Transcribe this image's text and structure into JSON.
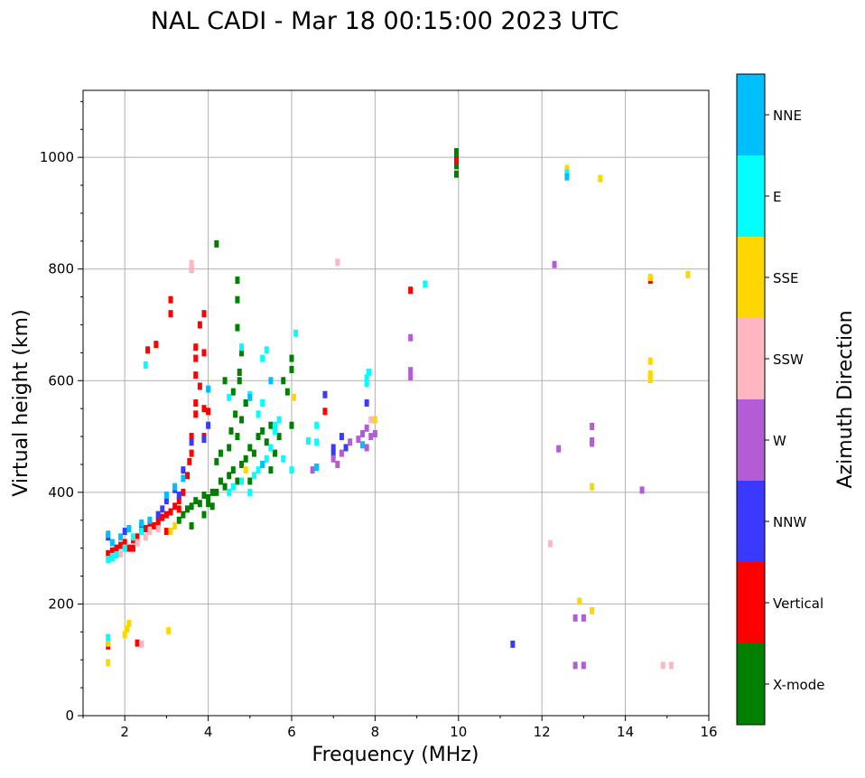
{
  "chart_data": {
    "type": "scatter",
    "title": "NAL CADI - Mar 18 00:15:00 2023 UTC",
    "xlabel": "Frequency (MHz)",
    "ylabel": "Virtual height (km)",
    "xlim": [
      1,
      16
    ],
    "ylim": [
      0,
      1120
    ],
    "xticks": [
      2,
      4,
      6,
      8,
      10,
      12,
      14,
      16
    ],
    "yticks": [
      0,
      200,
      400,
      600,
      800,
      1000
    ],
    "grid": true,
    "colorbar": {
      "label": "Azimuth Direction",
      "categories": [
        {
          "name": "X-mode",
          "color": "#008000"
        },
        {
          "name": "Vertical",
          "color": "#ff0000"
        },
        {
          "name": "NNW",
          "color": "#3a3aff"
        },
        {
          "name": "W",
          "color": "#b35cd6"
        },
        {
          "name": "SSW",
          "color": "#ffb6c1"
        },
        {
          "name": "SSE",
          "color": "#ffd700"
        },
        {
          "name": "E",
          "color": "#00ffff"
        },
        {
          "name": "NNE",
          "color": "#00bfff"
        }
      ]
    },
    "series": [
      {
        "name": "X-mode",
        "points": [
          [
            3.3,
            350
          ],
          [
            3.4,
            360
          ],
          [
            3.5,
            370
          ],
          [
            3.6,
            375
          ],
          [
            3.7,
            385
          ],
          [
            3.8,
            380
          ],
          [
            3.9,
            395
          ],
          [
            4.0,
            390
          ],
          [
            4.1,
            375
          ],
          [
            4.2,
            400
          ],
          [
            4.3,
            420
          ],
          [
            4.4,
            410
          ],
          [
            4.5,
            430
          ],
          [
            4.6,
            440
          ],
          [
            4.7,
            420
          ],
          [
            4.8,
            450
          ],
          [
            4.9,
            460
          ],
          [
            5.0,
            480
          ],
          [
            5.1,
            470
          ],
          [
            5.2,
            500
          ],
          [
            5.3,
            510
          ],
          [
            5.4,
            490
          ],
          [
            5.5,
            520
          ],
          [
            4.7,
            500
          ],
          [
            4.8,
            530
          ],
          [
            4.9,
            560
          ],
          [
            4.75,
            600
          ],
          [
            4.75,
            615
          ],
          [
            4.7,
            780
          ],
          [
            4.7,
            745
          ],
          [
            4.7,
            695
          ],
          [
            4.55,
            510
          ],
          [
            4.65,
            540
          ],
          [
            4.4,
            600
          ],
          [
            4.2,
            845
          ],
          [
            4.1,
            400
          ],
          [
            4.2,
            455
          ],
          [
            4.3,
            470
          ],
          [
            4.0,
            380
          ],
          [
            3.6,
            340
          ],
          [
            5.8,
            600
          ],
          [
            6.0,
            640
          ],
          [
            6.0,
            620
          ],
          [
            5.9,
            580
          ],
          [
            6.0,
            520
          ],
          [
            5.6,
            470
          ],
          [
            5.7,
            500
          ],
          [
            9.95,
            1000
          ],
          [
            9.95,
            985
          ],
          [
            9.95,
            970
          ],
          [
            9.95,
            1010
          ],
          [
            3.9,
            360
          ],
          [
            4.5,
            480
          ],
          [
            5.0,
            420
          ],
          [
            5.5,
            440
          ],
          [
            4.6,
            580
          ],
          [
            4.8,
            650
          ],
          [
            4.9,
            560
          ]
        ]
      },
      {
        "name": "Vertical",
        "points": [
          [
            1.6,
            290
          ],
          [
            1.7,
            295
          ],
          [
            1.8,
            300
          ],
          [
            1.9,
            305
          ],
          [
            2.0,
            310
          ],
          [
            2.1,
            300
          ],
          [
            2.2,
            315
          ],
          [
            2.3,
            320
          ],
          [
            2.4,
            330
          ],
          [
            2.5,
            335
          ],
          [
            2.6,
            345
          ],
          [
            2.7,
            340
          ],
          [
            2.8,
            350
          ],
          [
            2.9,
            355
          ],
          [
            3.0,
            360
          ],
          [
            3.1,
            365
          ],
          [
            3.2,
            375
          ],
          [
            3.3,
            385
          ],
          [
            3.4,
            400
          ],
          [
            3.5,
            430
          ],
          [
            3.6,
            470
          ],
          [
            3.6,
            500
          ],
          [
            3.7,
            540
          ],
          [
            3.7,
            560
          ],
          [
            3.8,
            590
          ],
          [
            3.7,
            610
          ],
          [
            3.7,
            640
          ],
          [
            3.7,
            660
          ],
          [
            3.8,
            700
          ],
          [
            3.9,
            720
          ],
          [
            3.6,
            800
          ],
          [
            3.1,
            720
          ],
          [
            3.1,
            745
          ],
          [
            2.75,
            665
          ],
          [
            2.55,
            655
          ],
          [
            3.55,
            455
          ],
          [
            3.9,
            650
          ],
          [
            3.9,
            550
          ],
          [
            4.0,
            545
          ],
          [
            3.9,
            500
          ],
          [
            8.85,
            762
          ],
          [
            14.6,
            780
          ],
          [
            9.95,
            995
          ],
          [
            6.8,
            545
          ],
          [
            1.6,
            125
          ],
          [
            2.3,
            130
          ],
          [
            2.8,
            340
          ],
          [
            3.3,
            370
          ],
          [
            3.0,
            330
          ],
          [
            2.2,
            300
          ]
        ]
      },
      {
        "name": "NNW",
        "points": [
          [
            1.6,
            320
          ],
          [
            2.0,
            330
          ],
          [
            2.4,
            340
          ],
          [
            2.8,
            360
          ],
          [
            3.0,
            385
          ],
          [
            3.3,
            395
          ],
          [
            3.4,
            440
          ],
          [
            3.6,
            490
          ],
          [
            3.9,
            495
          ],
          [
            4.0,
            520
          ],
          [
            6.8,
            575
          ],
          [
            7.0,
            470
          ],
          [
            7.2,
            500
          ],
          [
            7.3,
            480
          ],
          [
            7.8,
            560
          ],
          [
            11.3,
            128
          ],
          [
            7.0,
            480
          ],
          [
            3.2,
            405
          ],
          [
            2.9,
            370
          ]
        ]
      },
      {
        "name": "W",
        "points": [
          [
            6.5,
            440
          ],
          [
            6.6,
            445
          ],
          [
            7.0,
            460
          ],
          [
            7.1,
            450
          ],
          [
            7.2,
            470
          ],
          [
            7.4,
            490
          ],
          [
            7.8,
            480
          ],
          [
            7.9,
            500
          ],
          [
            7.8,
            515
          ],
          [
            8.0,
            505
          ],
          [
            8.85,
            607
          ],
          [
            8.85,
            618
          ],
          [
            8.85,
            677
          ],
          [
            12.4,
            478
          ],
          [
            13.2,
            488
          ],
          [
            13.2,
            492
          ],
          [
            13.2,
            518
          ],
          [
            12.3,
            808
          ],
          [
            12.8,
            90
          ],
          [
            13.0,
            90
          ],
          [
            12.8,
            175
          ],
          [
            13.0,
            175
          ],
          [
            14.4,
            404
          ],
          [
            7.6,
            495
          ],
          [
            7.7,
            505
          ]
        ]
      },
      {
        "name": "SSW",
        "points": [
          [
            1.7,
            285
          ],
          [
            1.9,
            290
          ],
          [
            2.0,
            300
          ],
          [
            2.3,
            310
          ],
          [
            2.5,
            320
          ],
          [
            2.6,
            330
          ],
          [
            2.8,
            335
          ],
          [
            3.6,
            810
          ],
          [
            3.6,
            800
          ],
          [
            7.1,
            812
          ],
          [
            7.9,
            530
          ],
          [
            12.2,
            308
          ],
          [
            14.9,
            90
          ],
          [
            15.1,
            90
          ],
          [
            12.6,
            970
          ],
          [
            2.4,
            128
          ]
        ]
      },
      {
        "name": "SSE",
        "points": [
          [
            1.6,
            95
          ],
          [
            1.6,
            130
          ],
          [
            2.05,
            155
          ],
          [
            2.1,
            165
          ],
          [
            2.0,
            145
          ],
          [
            3.05,
            152
          ],
          [
            3.1,
            330
          ],
          [
            3.2,
            340
          ],
          [
            6.05,
            570
          ],
          [
            8.0,
            530
          ],
          [
            12.6,
            980
          ],
          [
            13.4,
            962
          ],
          [
            13.2,
            410
          ],
          [
            12.9,
            205
          ],
          [
            13.2,
            188
          ],
          [
            14.6,
            635
          ],
          [
            14.6,
            612
          ],
          [
            14.6,
            602
          ],
          [
            14.6,
            785
          ],
          [
            15.5,
            790
          ],
          [
            4.9,
            440
          ]
        ]
      },
      {
        "name": "E",
        "points": [
          [
            1.6,
            280
          ],
          [
            1.7,
            283
          ],
          [
            1.8,
            288
          ],
          [
            2.0,
            300
          ],
          [
            2.2,
            320
          ],
          [
            2.4,
            330
          ],
          [
            2.5,
            628
          ],
          [
            4.5,
            400
          ],
          [
            4.6,
            410
          ],
          [
            4.8,
            420
          ],
          [
            5.0,
            400
          ],
          [
            5.1,
            430
          ],
          [
            5.2,
            440
          ],
          [
            5.3,
            450
          ],
          [
            5.4,
            460
          ],
          [
            5.5,
            480
          ],
          [
            5.6,
            510
          ],
          [
            5.7,
            530
          ],
          [
            5.2,
            540
          ],
          [
            5.3,
            560
          ],
          [
            5.0,
            575
          ],
          [
            4.5,
            570
          ],
          [
            4.8,
            660
          ],
          [
            5.4,
            655
          ],
          [
            5.3,
            640
          ],
          [
            6.0,
            440
          ],
          [
            6.4,
            492
          ],
          [
            6.6,
            490
          ],
          [
            6.6,
            520
          ],
          [
            6.1,
            685
          ],
          [
            7.85,
            615
          ],
          [
            7.8,
            605
          ],
          [
            7.8,
            595
          ],
          [
            9.2,
            773
          ],
          [
            12.6,
            972
          ],
          [
            1.6,
            140
          ],
          [
            5.6,
            520
          ],
          [
            5.8,
            460
          ]
        ]
      },
      {
        "name": "NNE",
        "points": [
          [
            1.6,
            325
          ],
          [
            1.7,
            310
          ],
          [
            1.9,
            320
          ],
          [
            2.1,
            335
          ],
          [
            2.4,
            345
          ],
          [
            2.6,
            350
          ],
          [
            3.0,
            395
          ],
          [
            3.2,
            410
          ],
          [
            3.4,
            425
          ],
          [
            4.0,
            585
          ],
          [
            5.0,
            570
          ],
          [
            5.5,
            600
          ],
          [
            6.6,
            445
          ],
          [
            7.7,
            485
          ],
          [
            12.6,
            965
          ],
          [
            5.3,
            450
          ]
        ]
      }
    ]
  }
}
